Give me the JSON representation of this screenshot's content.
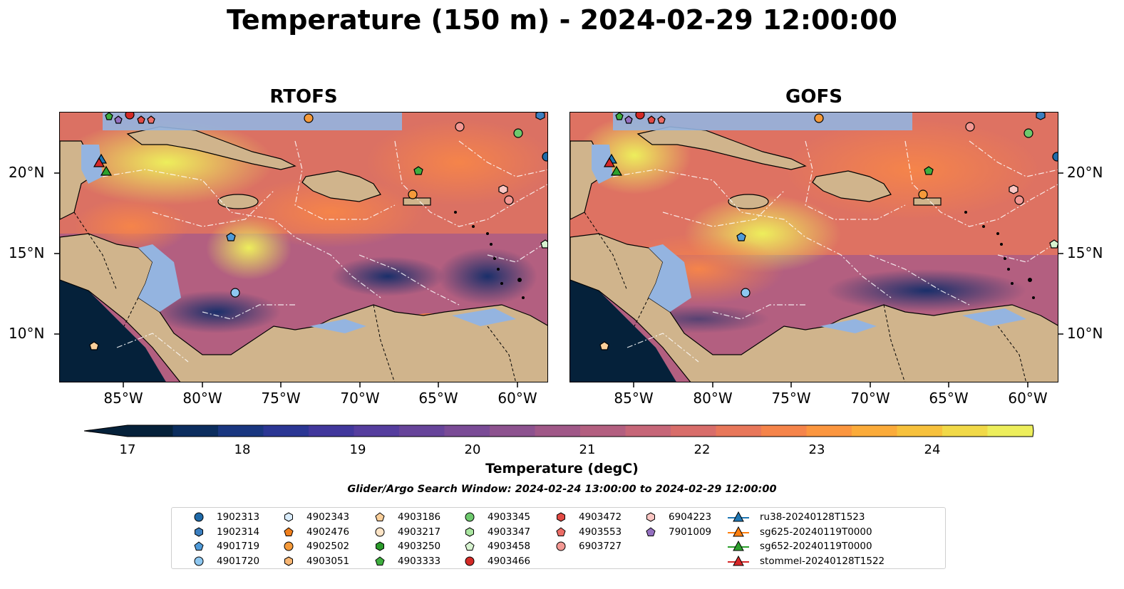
{
  "title": "Temperature (150 m) - 2024-02-29 12:00:00",
  "panels": [
    {
      "name": "RTOFS"
    },
    {
      "name": "GOFS"
    }
  ],
  "x_ticks": [
    "85°W",
    "80°W",
    "75°W",
    "70°W",
    "65°W",
    "60°W"
  ],
  "y_ticks": [
    "20°N",
    "15°N",
    "10°N"
  ],
  "colorbar": {
    "ticks": [
      "17",
      "18",
      "19",
      "20",
      "21",
      "22",
      "23",
      "24"
    ],
    "label": "Temperature (degC)",
    "colors": [
      "#05213a",
      "#0b2d5e",
      "#193680",
      "#2b3694",
      "#41379c",
      "#553d9e",
      "#67449a",
      "#7a4b96",
      "#8d528f",
      "#a05888",
      "#b35f80",
      "#c66678",
      "#d86d6a",
      "#e8775a",
      "#f5844a",
      "#fb963f",
      "#fbab3a",
      "#f7c13c",
      "#f1d948",
      "#edee5c"
    ],
    "extend": "both"
  },
  "search_window": "Glider/Argo Search Window: 2024-02-24 13:00:00 to 2024-02-29 12:00:00",
  "legend": [
    {
      "label": "1902313",
      "marker": "circle",
      "color": "#1f6aa8"
    },
    {
      "label": "1902314",
      "marker": "hexagon",
      "color": "#3c7fc0"
    },
    {
      "label": "4901719",
      "marker": "pentagon",
      "color": "#4f9ad8"
    },
    {
      "label": "4901720",
      "marker": "circle",
      "color": "#8ec7f0"
    },
    {
      "label": "4902343",
      "marker": "hexagon",
      "color": "#d9ecfb"
    },
    {
      "label": "4902476",
      "marker": "pentagon",
      "color": "#f07f1c"
    },
    {
      "label": "4902502",
      "marker": "circle",
      "color": "#f59a3a"
    },
    {
      "label": "4903051",
      "marker": "hexagon",
      "color": "#f8b673"
    },
    {
      "label": "4903186",
      "marker": "pentagon",
      "color": "#fbcf9a"
    },
    {
      "label": "4903217",
      "marker": "circle",
      "color": "#fde4c6"
    },
    {
      "label": "4903250",
      "marker": "hexagon",
      "color": "#2a9a2a"
    },
    {
      "label": "4903333",
      "marker": "pentagon",
      "color": "#3fae3f"
    },
    {
      "label": "4903345",
      "marker": "circle",
      "color": "#6dc96d"
    },
    {
      "label": "4903347",
      "marker": "hexagon",
      "color": "#a9e5a0"
    },
    {
      "label": "4903458",
      "marker": "pentagon",
      "color": "#d7f3d0"
    },
    {
      "label": "4903466",
      "marker": "circle",
      "color": "#d42a26"
    },
    {
      "label": "4903472",
      "marker": "hexagon",
      "color": "#e24a44"
    },
    {
      "label": "4903553",
      "marker": "pentagon",
      "color": "#ec6d66"
    },
    {
      "label": "6903727",
      "marker": "circle",
      "color": "#f39893"
    },
    {
      "label": "6904223",
      "marker": "hexagon",
      "color": "#fbc6c3"
    },
    {
      "label": "7901009",
      "marker": "pentagon",
      "color": "#9470c0"
    },
    {
      "label": "ru38-20240128T1523",
      "marker": "triangle-line",
      "color": "#1f77b4"
    },
    {
      "label": "sg625-20240119T0000",
      "marker": "triangle-line",
      "color": "#ff7f0e"
    },
    {
      "label": "sg652-20240119T0000",
      "marker": "triangle-line",
      "color": "#2ca02c"
    },
    {
      "label": "stommel-20240128T1522",
      "marker": "triangle-line",
      "color": "#d62728"
    }
  ],
  "colors": {
    "land": "#d0b48c",
    "shallow": "#94b4e0",
    "deep_pacific": "#05213a",
    "coast": "#000000",
    "eez": "#ffffff"
  }
}
